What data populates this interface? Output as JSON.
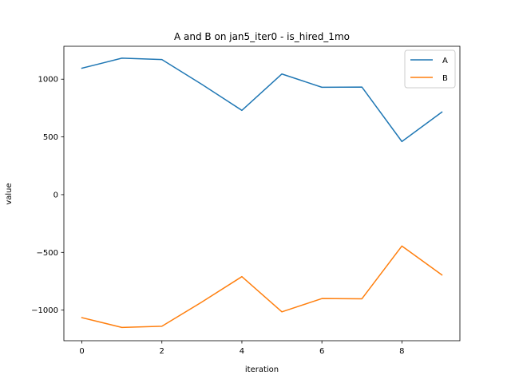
{
  "chart_data": {
    "type": "line",
    "title": "A and B on jan5_iter0 - is_hired_1mo",
    "xlabel": "iteration",
    "ylabel": "value",
    "x": [
      0,
      1,
      2,
      3,
      4,
      5,
      6,
      7,
      8,
      9
    ],
    "xlim": [
      -0.45,
      9.45
    ],
    "ylim": [
      -1265,
      1285
    ],
    "xticks": [
      0,
      2,
      4,
      6,
      8
    ],
    "xtick_labels": [
      "0",
      "2",
      "4",
      "6",
      "8"
    ],
    "yticks": [
      -1000,
      -500,
      0,
      500,
      1000
    ],
    "ytick_labels": [
      "−1000",
      "−500",
      "0",
      "500",
      "1000"
    ],
    "grid": false,
    "legend_position": "top-right",
    "series": [
      {
        "name": "A",
        "color": "#1f77b4",
        "values": [
          1095,
          1182,
          1170,
          955,
          730,
          1045,
          930,
          932,
          460,
          715
        ]
      },
      {
        "name": "B",
        "color": "#ff7f0e",
        "values": [
          -1065,
          -1150,
          -1140,
          -930,
          -710,
          -1015,
          -900,
          -902,
          -445,
          -695
        ]
      }
    ]
  }
}
